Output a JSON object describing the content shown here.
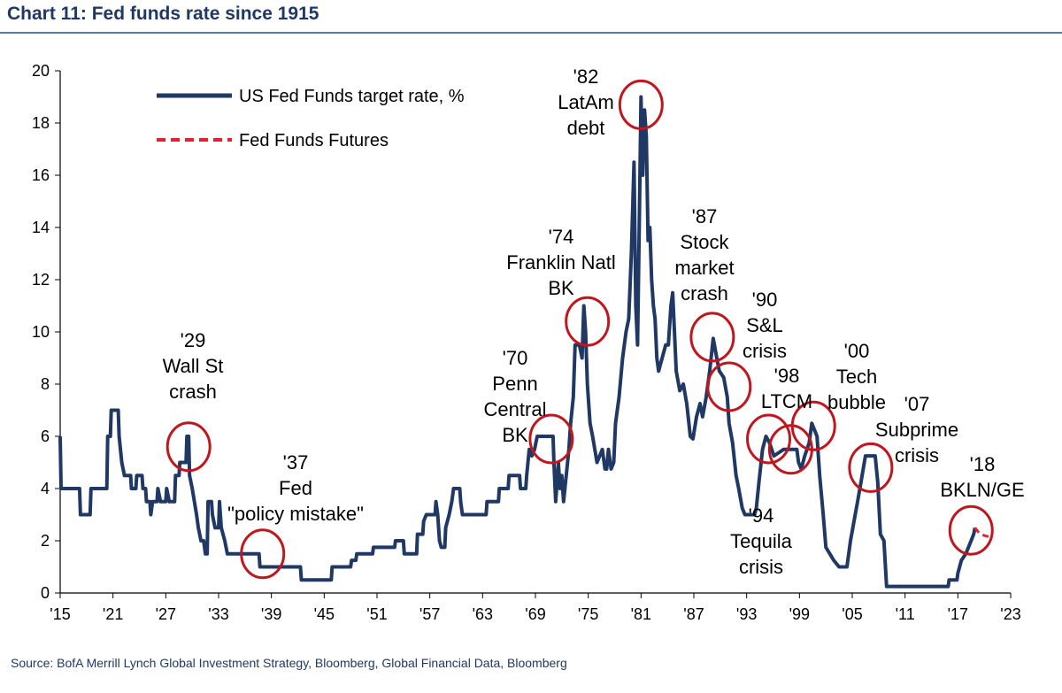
{
  "title": "Chart 11: Fed funds rate since 1915",
  "source": "Source:  BofA Merrill Lynch Global Investment Strategy, Bloomberg, Global Financial Data, Bloomberg",
  "chart_data": {
    "type": "line",
    "xlabel": "",
    "ylabel": "",
    "xlim": [
      1915,
      2023
    ],
    "ylim": [
      0,
      20
    ],
    "yticks": [
      "0",
      "2",
      "4",
      "6",
      "8",
      "10",
      "12",
      "14",
      "16",
      "18",
      "20"
    ],
    "xticks": [
      {
        "year": 1915,
        "label": "'15"
      },
      {
        "year": 1921,
        "label": "'21"
      },
      {
        "year": 1927,
        "label": "'27"
      },
      {
        "year": 1933,
        "label": "'33"
      },
      {
        "year": 1939,
        "label": "'39"
      },
      {
        "year": 1945,
        "label": "'45"
      },
      {
        "year": 1951,
        "label": "'51"
      },
      {
        "year": 1957,
        "label": "'57"
      },
      {
        "year": 1963,
        "label": "'63"
      },
      {
        "year": 1969,
        "label": "'69"
      },
      {
        "year": 1975,
        "label": "'75"
      },
      {
        "year": 1981,
        "label": "'81"
      },
      {
        "year": 1987,
        "label": "'87"
      },
      {
        "year": 1993,
        "label": "'93"
      },
      {
        "year": 1999,
        "label": "'99"
      },
      {
        "year": 2005,
        "label": "'05"
      },
      {
        "year": 2011,
        "label": "'11"
      },
      {
        "year": 2017,
        "label": "'17"
      },
      {
        "year": 2023,
        "label": "'23"
      }
    ],
    "grid": false,
    "legend_position": "top-left",
    "colors": {
      "line": "#1f3864",
      "futures": "#e8202a",
      "circle": "#c0161e"
    },
    "series": [
      {
        "name": "US Fed Funds target rate, %",
        "style": "solid",
        "points": [
          [
            1915.0,
            6.0
          ],
          [
            1915.1,
            4.0
          ],
          [
            1917.2,
            4.0
          ],
          [
            1917.3,
            3.0
          ],
          [
            1918.4,
            3.0
          ],
          [
            1918.5,
            4.0
          ],
          [
            1920.3,
            4.0
          ],
          [
            1920.4,
            6.0
          ],
          [
            1920.7,
            6.0
          ],
          [
            1920.8,
            7.0
          ],
          [
            1921.6,
            7.0
          ],
          [
            1921.7,
            6.0
          ],
          [
            1922.0,
            5.0
          ],
          [
            1922.3,
            4.5
          ],
          [
            1923.0,
            4.5
          ],
          [
            1923.1,
            4.0
          ],
          [
            1923.6,
            4.0
          ],
          [
            1923.7,
            4.5
          ],
          [
            1924.3,
            4.5
          ],
          [
            1924.4,
            4.0
          ],
          [
            1924.7,
            4.0
          ],
          [
            1924.8,
            3.5
          ],
          [
            1925.2,
            3.5
          ],
          [
            1925.3,
            3.0
          ],
          [
            1925.5,
            3.5
          ],
          [
            1926.0,
            3.5
          ],
          [
            1926.1,
            4.0
          ],
          [
            1926.4,
            3.5
          ],
          [
            1927.0,
            3.5
          ],
          [
            1927.1,
            4.0
          ],
          [
            1927.4,
            3.5
          ],
          [
            1928.0,
            3.5
          ],
          [
            1928.1,
            4.5
          ],
          [
            1928.5,
            4.5
          ],
          [
            1928.6,
            5.0
          ],
          [
            1929.3,
            5.0
          ],
          [
            1929.4,
            6.0
          ],
          [
            1929.6,
            6.0
          ],
          [
            1929.7,
            4.5
          ],
          [
            1930.0,
            4.0
          ],
          [
            1930.5,
            3.0
          ],
          [
            1930.7,
            2.5
          ],
          [
            1931.0,
            2.0
          ],
          [
            1931.3,
            2.0
          ],
          [
            1931.5,
            1.5
          ],
          [
            1931.7,
            1.5
          ],
          [
            1931.8,
            3.5
          ],
          [
            1932.2,
            3.5
          ],
          [
            1932.3,
            3.0
          ],
          [
            1932.6,
            2.5
          ],
          [
            1933.0,
            2.5
          ],
          [
            1933.1,
            3.5
          ],
          [
            1933.3,
            2.5
          ],
          [
            1933.7,
            2.0
          ],
          [
            1934.0,
            1.5
          ],
          [
            1937.6,
            1.5
          ],
          [
            1937.7,
            1.0
          ],
          [
            1942.3,
            1.0
          ],
          [
            1942.4,
            0.5
          ],
          [
            1945.8,
            0.5
          ],
          [
            1945.9,
            1.0
          ],
          [
            1948.0,
            1.0
          ],
          [
            1948.1,
            1.25
          ],
          [
            1948.6,
            1.25
          ],
          [
            1948.7,
            1.5
          ],
          [
            1950.5,
            1.5
          ],
          [
            1950.6,
            1.75
          ],
          [
            1953.0,
            1.75
          ],
          [
            1953.1,
            2.0
          ],
          [
            1954.0,
            2.0
          ],
          [
            1954.1,
            1.5
          ],
          [
            1955.5,
            1.5
          ],
          [
            1955.6,
            2.25
          ],
          [
            1956.2,
            2.25
          ],
          [
            1956.3,
            2.75
          ],
          [
            1956.6,
            3.0
          ],
          [
            1957.6,
            3.0
          ],
          [
            1957.7,
            3.5
          ],
          [
            1957.9,
            3.0
          ],
          [
            1958.1,
            2.0
          ],
          [
            1958.3,
            1.75
          ],
          [
            1958.7,
            1.75
          ],
          [
            1958.8,
            2.5
          ],
          [
            1959.2,
            3.0
          ],
          [
            1959.5,
            3.5
          ],
          [
            1959.7,
            4.0
          ],
          [
            1960.4,
            4.0
          ],
          [
            1960.5,
            3.5
          ],
          [
            1960.7,
            3.0
          ],
          [
            1963.4,
            3.0
          ],
          [
            1963.5,
            3.5
          ],
          [
            1964.8,
            3.5
          ],
          [
            1964.9,
            4.0
          ],
          [
            1965.9,
            4.0
          ],
          [
            1966.0,
            4.5
          ],
          [
            1967.2,
            4.5
          ],
          [
            1967.3,
            4.0
          ],
          [
            1967.9,
            4.0
          ],
          [
            1968.0,
            4.5
          ],
          [
            1968.3,
            5.5
          ],
          [
            1968.6,
            5.25
          ],
          [
            1968.9,
            5.5
          ],
          [
            1969.2,
            6.0
          ],
          [
            1971.0,
            6.0
          ],
          [
            1971.1,
            5.0
          ],
          [
            1971.3,
            3.5
          ],
          [
            1971.5,
            4.5
          ],
          [
            1971.6,
            5.0
          ],
          [
            1971.8,
            4.0
          ],
          [
            1972.0,
            4.5
          ],
          [
            1972.2,
            3.5
          ],
          [
            1972.5,
            4.5
          ],
          [
            1972.8,
            5.5
          ],
          [
            1973.0,
            6.5
          ],
          [
            1973.3,
            7.5
          ],
          [
            1973.5,
            9.5
          ],
          [
            1974.0,
            9.5
          ],
          [
            1974.3,
            9.0
          ],
          [
            1974.5,
            11.0
          ],
          [
            1974.7,
            10.0
          ],
          [
            1974.9,
            8.0
          ],
          [
            1975.2,
            6.5
          ],
          [
            1975.5,
            6.0
          ],
          [
            1976.0,
            5.0
          ],
          [
            1976.3,
            5.25
          ],
          [
            1976.6,
            5.5
          ],
          [
            1976.9,
            4.75
          ],
          [
            1977.1,
            4.75
          ],
          [
            1977.3,
            5.5
          ],
          [
            1977.6,
            4.75
          ],
          [
            1977.9,
            5.0
          ],
          [
            1978.1,
            6.5
          ],
          [
            1978.5,
            7.5
          ],
          [
            1978.9,
            9.0
          ],
          [
            1979.3,
            10.0
          ],
          [
            1979.6,
            10.5
          ],
          [
            1979.9,
            13.0
          ],
          [
            1980.2,
            16.5
          ],
          [
            1980.4,
            11.0
          ],
          [
            1980.6,
            9.5
          ],
          [
            1980.8,
            14.0
          ],
          [
            1981.0,
            19.0
          ],
          [
            1981.2,
            16.0
          ],
          [
            1981.4,
            18.5
          ],
          [
            1981.6,
            17.5
          ],
          [
            1981.8,
            13.5
          ],
          [
            1982.0,
            14.0
          ],
          [
            1982.2,
            12.0
          ],
          [
            1982.4,
            11.0
          ],
          [
            1982.6,
            10.5
          ],
          [
            1982.8,
            9.0
          ],
          [
            1983.0,
            8.5
          ],
          [
            1983.4,
            9.0
          ],
          [
            1983.8,
            9.5
          ],
          [
            1984.1,
            9.5
          ],
          [
            1984.4,
            11.0
          ],
          [
            1984.6,
            11.5
          ],
          [
            1984.8,
            10.0
          ],
          [
            1985.0,
            8.5
          ],
          [
            1985.4,
            7.75
          ],
          [
            1985.8,
            8.0
          ],
          [
            1986.2,
            7.25
          ],
          [
            1986.6,
            6.0
          ],
          [
            1986.9,
            5.9
          ],
          [
            1987.3,
            6.75
          ],
          [
            1987.7,
            7.25
          ],
          [
            1988.0,
            6.75
          ],
          [
            1988.4,
            7.5
          ],
          [
            1988.8,
            8.5
          ],
          [
            1989.2,
            9.75
          ],
          [
            1989.6,
            9.0
          ],
          [
            1989.9,
            8.5
          ],
          [
            1990.4,
            8.25
          ],
          [
            1990.8,
            7.5
          ],
          [
            1991.0,
            6.5
          ],
          [
            1991.4,
            5.75
          ],
          [
            1991.8,
            4.5
          ],
          [
            1992.1,
            4.0
          ],
          [
            1992.5,
            3.25
          ],
          [
            1992.8,
            3.0
          ],
          [
            1993.9,
            3.0
          ],
          [
            1994.1,
            3.25
          ],
          [
            1994.4,
            4.25
          ],
          [
            1994.8,
            5.5
          ],
          [
            1995.2,
            6.0
          ],
          [
            1995.6,
            5.75
          ],
          [
            1996.1,
            5.25
          ],
          [
            1997.2,
            5.5
          ],
          [
            1998.7,
            5.5
          ],
          [
            1998.9,
            5.0
          ],
          [
            1999.2,
            4.75
          ],
          [
            1999.6,
            5.25
          ],
          [
            2000.1,
            5.75
          ],
          [
            2000.4,
            6.5
          ],
          [
            2001.0,
            6.0
          ],
          [
            2001.3,
            4.5
          ],
          [
            2001.7,
            3.0
          ],
          [
            2002.0,
            1.75
          ],
          [
            2002.9,
            1.25
          ],
          [
            2003.5,
            1.0
          ],
          [
            2004.4,
            1.0
          ],
          [
            2004.8,
            2.0
          ],
          [
            2005.2,
            2.75
          ],
          [
            2005.6,
            3.5
          ],
          [
            2006.0,
            4.25
          ],
          [
            2006.5,
            5.25
          ],
          [
            2007.6,
            5.25
          ],
          [
            2007.9,
            4.25
          ],
          [
            2008.2,
            2.25
          ],
          [
            2008.6,
            2.0
          ],
          [
            2008.9,
            0.25
          ],
          [
            2015.9,
            0.25
          ],
          [
            2016.0,
            0.5
          ],
          [
            2016.9,
            0.5
          ],
          [
            2017.0,
            0.75
          ],
          [
            2017.4,
            1.25
          ],
          [
            2017.9,
            1.5
          ],
          [
            2018.2,
            1.75
          ],
          [
            2018.5,
            2.0
          ],
          [
            2018.8,
            2.25
          ],
          [
            2018.95,
            2.5
          ]
        ]
      },
      {
        "name": "Fed Funds Futures",
        "style": "dashed",
        "points": [
          [
            2018.95,
            2.5
          ],
          [
            2019.4,
            2.3
          ],
          [
            2020.0,
            2.2
          ],
          [
            2020.6,
            2.15
          ],
          [
            2021.0,
            2.15
          ]
        ]
      }
    ],
    "annotations": [
      {
        "lines": [
          "'29",
          "Wall St",
          "crash"
        ],
        "circle_at": [
          1929.6,
          5.6
        ]
      },
      {
        "lines": [
          "'37",
          "Fed",
          "\"policy mistake\""
        ],
        "circle_at": [
          1938.0,
          1.5
        ]
      },
      {
        "lines": [
          "'70",
          "Penn",
          "Central",
          "BK"
        ],
        "circle_at": [
          1970.8,
          5.9
        ]
      },
      {
        "lines": [
          "'74",
          "Franklin Natl",
          "BK"
        ],
        "circle_at": [
          1974.9,
          10.4
        ]
      },
      {
        "lines": [
          "'82",
          "LatAm",
          "debt"
        ],
        "circle_at": [
          1981.0,
          18.7
        ]
      },
      {
        "lines": [
          "'87",
          "Stock",
          "market",
          "crash"
        ],
        "circle_at": [
          1989.1,
          9.8
        ]
      },
      {
        "lines": [
          "'90",
          "S&L",
          "crisis"
        ],
        "circle_at": [
          1991.0,
          7.9
        ]
      },
      {
        "lines": [
          "'98",
          "LTCM"
        ],
        "circle_at": [
          1998.0,
          5.5
        ]
      },
      {
        "lines": [
          "'94",
          "Tequila",
          "crisis"
        ],
        "circle_at": [
          1995.5,
          5.9
        ]
      },
      {
        "lines": [
          "'00",
          "Tech",
          "bubble"
        ],
        "circle_at": [
          2000.6,
          6.4
        ]
      },
      {
        "lines": [
          "'07",
          "Subprime",
          "crisis"
        ],
        "circle_at": [
          2007.1,
          4.8
        ]
      },
      {
        "lines": [
          "'18",
          "BKLN/GE"
        ],
        "circle_at": [
          2018.5,
          2.4
        ]
      }
    ]
  }
}
